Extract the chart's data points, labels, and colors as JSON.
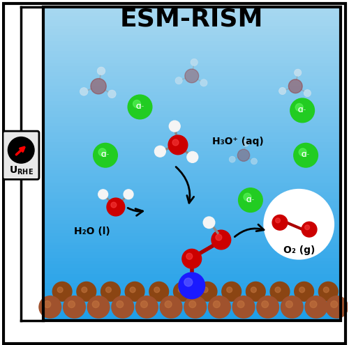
{
  "title": "ESM-RISM",
  "title_fontsize": 26,
  "bg_color_top": "#1E9EE8",
  "bg_color_bottom": "#A8D8F0",
  "fig_bg": "#ffffff",
  "border_color": "#000000",
  "label_h3o": "H₃O⁺ (aq)",
  "label_h2o": "H₂O (l)",
  "label_o2": "O₂ (g)",
  "urhe_label": "U",
  "urhe_sub": "RHE",
  "copper_color": "#8B4513",
  "copper_color2": "#A0522D",
  "nitrogen_color": "#1A1AFF",
  "oxygen_color": "#CC0000",
  "hydrogen_color": "#F5F5F5",
  "green_ion_color": "#22CC22",
  "red_bond_color": "#CC2200"
}
